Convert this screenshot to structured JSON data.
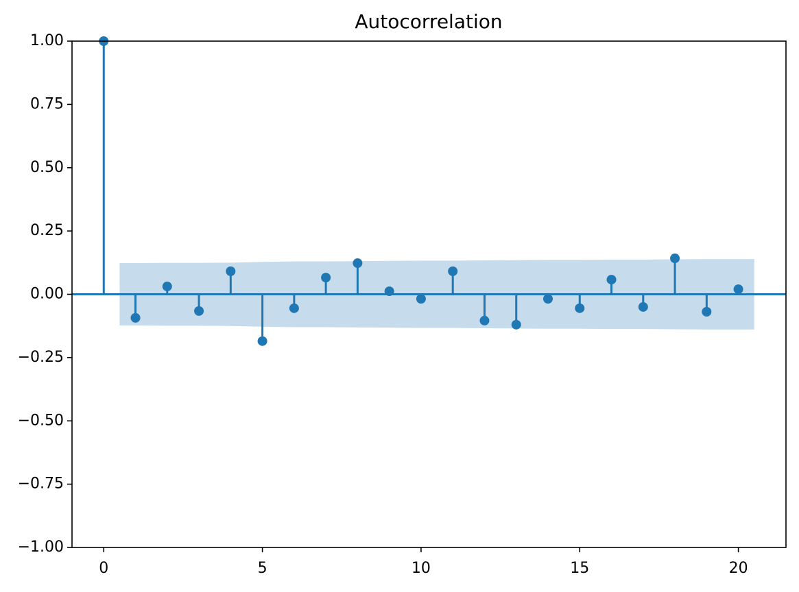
{
  "chart_data": {
    "type": "stem",
    "title": "Autocorrelation",
    "color": "#1f77b4",
    "band_color": "#c6dbec",
    "x": [
      0,
      1,
      2,
      3,
      4,
      5,
      6,
      7,
      8,
      9,
      10,
      11,
      12,
      13,
      14,
      15,
      16,
      17,
      18,
      19,
      20
    ],
    "values": [
      1.0,
      -0.093,
      0.031,
      -0.066,
      0.091,
      -0.185,
      -0.055,
      0.066,
      0.123,
      0.012,
      -0.018,
      0.091,
      -0.104,
      -0.12,
      -0.018,
      -0.055,
      0.058,
      -0.05,
      0.142,
      -0.069,
      0.02
    ],
    "band": {
      "x": [
        0.5,
        1,
        2,
        3,
        4,
        5,
        6,
        7,
        8,
        9,
        10,
        11,
        12,
        13,
        14,
        15,
        16,
        17,
        18,
        19,
        20,
        20.5
      ],
      "upper": [
        0.123,
        0.123,
        0.124,
        0.124,
        0.125,
        0.128,
        0.13,
        0.13,
        0.131,
        0.132,
        0.133,
        0.133,
        0.134,
        0.135,
        0.136,
        0.136,
        0.137,
        0.137,
        0.138,
        0.139,
        0.139,
        0.139
      ],
      "lower": [
        -0.123,
        -0.123,
        -0.124,
        -0.124,
        -0.125,
        -0.128,
        -0.13,
        -0.13,
        -0.131,
        -0.132,
        -0.133,
        -0.133,
        -0.134,
        -0.135,
        -0.136,
        -0.136,
        -0.137,
        -0.137,
        -0.138,
        -0.139,
        -0.139,
        -0.139
      ]
    },
    "xlim": [
      -1,
      21.5
    ],
    "ylim": [
      -1,
      1
    ],
    "xticks": [
      0,
      5,
      10,
      15,
      20
    ],
    "yticks": [
      {
        "value": -1,
        "label": "−1.00"
      },
      {
        "value": -0.75,
        "label": "−0.75"
      },
      {
        "value": -0.5,
        "label": "−0.50"
      },
      {
        "value": -0.25,
        "label": "−0.25"
      },
      {
        "value": 0,
        "label": "0.00"
      },
      {
        "value": 0.25,
        "label": "0.25"
      },
      {
        "value": 0.5,
        "label": "0.50"
      },
      {
        "value": 0.75,
        "label": "0.75"
      },
      {
        "value": 1,
        "label": "1.00"
      }
    ]
  }
}
